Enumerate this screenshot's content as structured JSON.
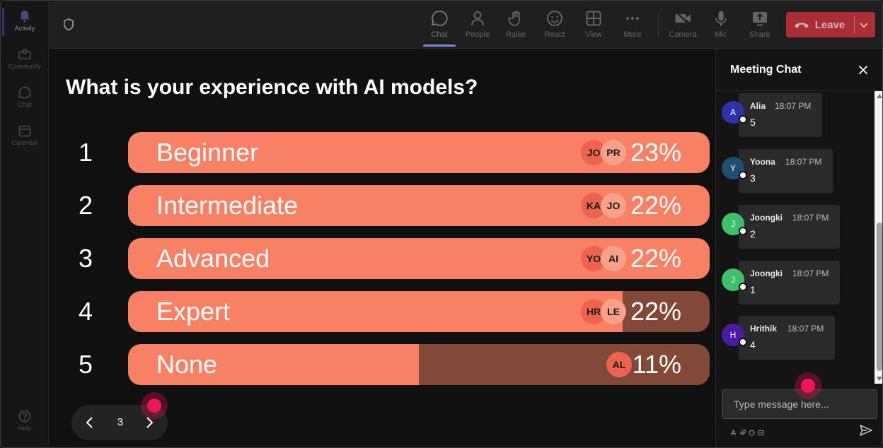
{
  "rail": {
    "items": [
      {
        "label": "Activity",
        "icon": "bell-icon",
        "active": true
      },
      {
        "label": "Community",
        "icon": "community-icon",
        "active": false
      },
      {
        "label": "Chat",
        "icon": "chat-icon",
        "active": false
      },
      {
        "label": "Calendar",
        "icon": "calendar-icon",
        "active": false
      }
    ],
    "help_label": "Help"
  },
  "toolbar": {
    "chat_label": "Chat",
    "people_label": "People",
    "raise_label": "Raise",
    "react_label": "React",
    "view_label": "View",
    "more_label": "More",
    "camera_label": "Camera",
    "mic_label": "Mic",
    "share_label": "Share",
    "leave_label": "Leave"
  },
  "poll": {
    "question": "What is your experience with AI models?",
    "options": [
      {
        "num": "1",
        "label": "Beginner",
        "percent": "23%",
        "fill": 1.0,
        "voters": [
          "JO",
          "PR"
        ]
      },
      {
        "num": "2",
        "label": "Intermediate",
        "percent": "22%",
        "fill": 1.0,
        "voters": [
          "KA",
          "JO"
        ]
      },
      {
        "num": "3",
        "label": "Advanced",
        "percent": "22%",
        "fill": 1.0,
        "voters": [
          "YO",
          "AI"
        ]
      },
      {
        "num": "4",
        "label": "Expert",
        "percent": "22%",
        "fill": 0.85,
        "voters": [
          "HR",
          "LE"
        ]
      },
      {
        "num": "5",
        "label": "None",
        "percent": "11%",
        "fill": 0.5,
        "voters": [
          "AL"
        ]
      }
    ],
    "page": "3"
  },
  "chat": {
    "title": "Meeting Chat",
    "messages": [
      {
        "initial": "A",
        "name": "Alia",
        "time": "18:07 PM",
        "text": "5",
        "color": "#2a34a8"
      },
      {
        "initial": "Y",
        "name": "Yoona",
        "time": "18:07 PM",
        "text": "3",
        "color": "#1f4f6e"
      },
      {
        "initial": "J",
        "name": "Joongki",
        "time": "18:07 PM",
        "text": "2",
        "color": "#3fbf6a"
      },
      {
        "initial": "J",
        "name": "Joongki",
        "time": "18:07 PM",
        "text": "1",
        "color": "#3fbf6a"
      },
      {
        "initial": "H",
        "name": "Hrithik",
        "time": "18:07 PM",
        "text": "4",
        "color": "#4a1aa0"
      }
    ],
    "input_placeholder": "Type message here..."
  },
  "colors": {
    "accent": "#7c84ec",
    "bar_fill": "#f78065",
    "bar_track": "#824838",
    "leave": "#c4313b",
    "cursor": "#f0145a"
  }
}
